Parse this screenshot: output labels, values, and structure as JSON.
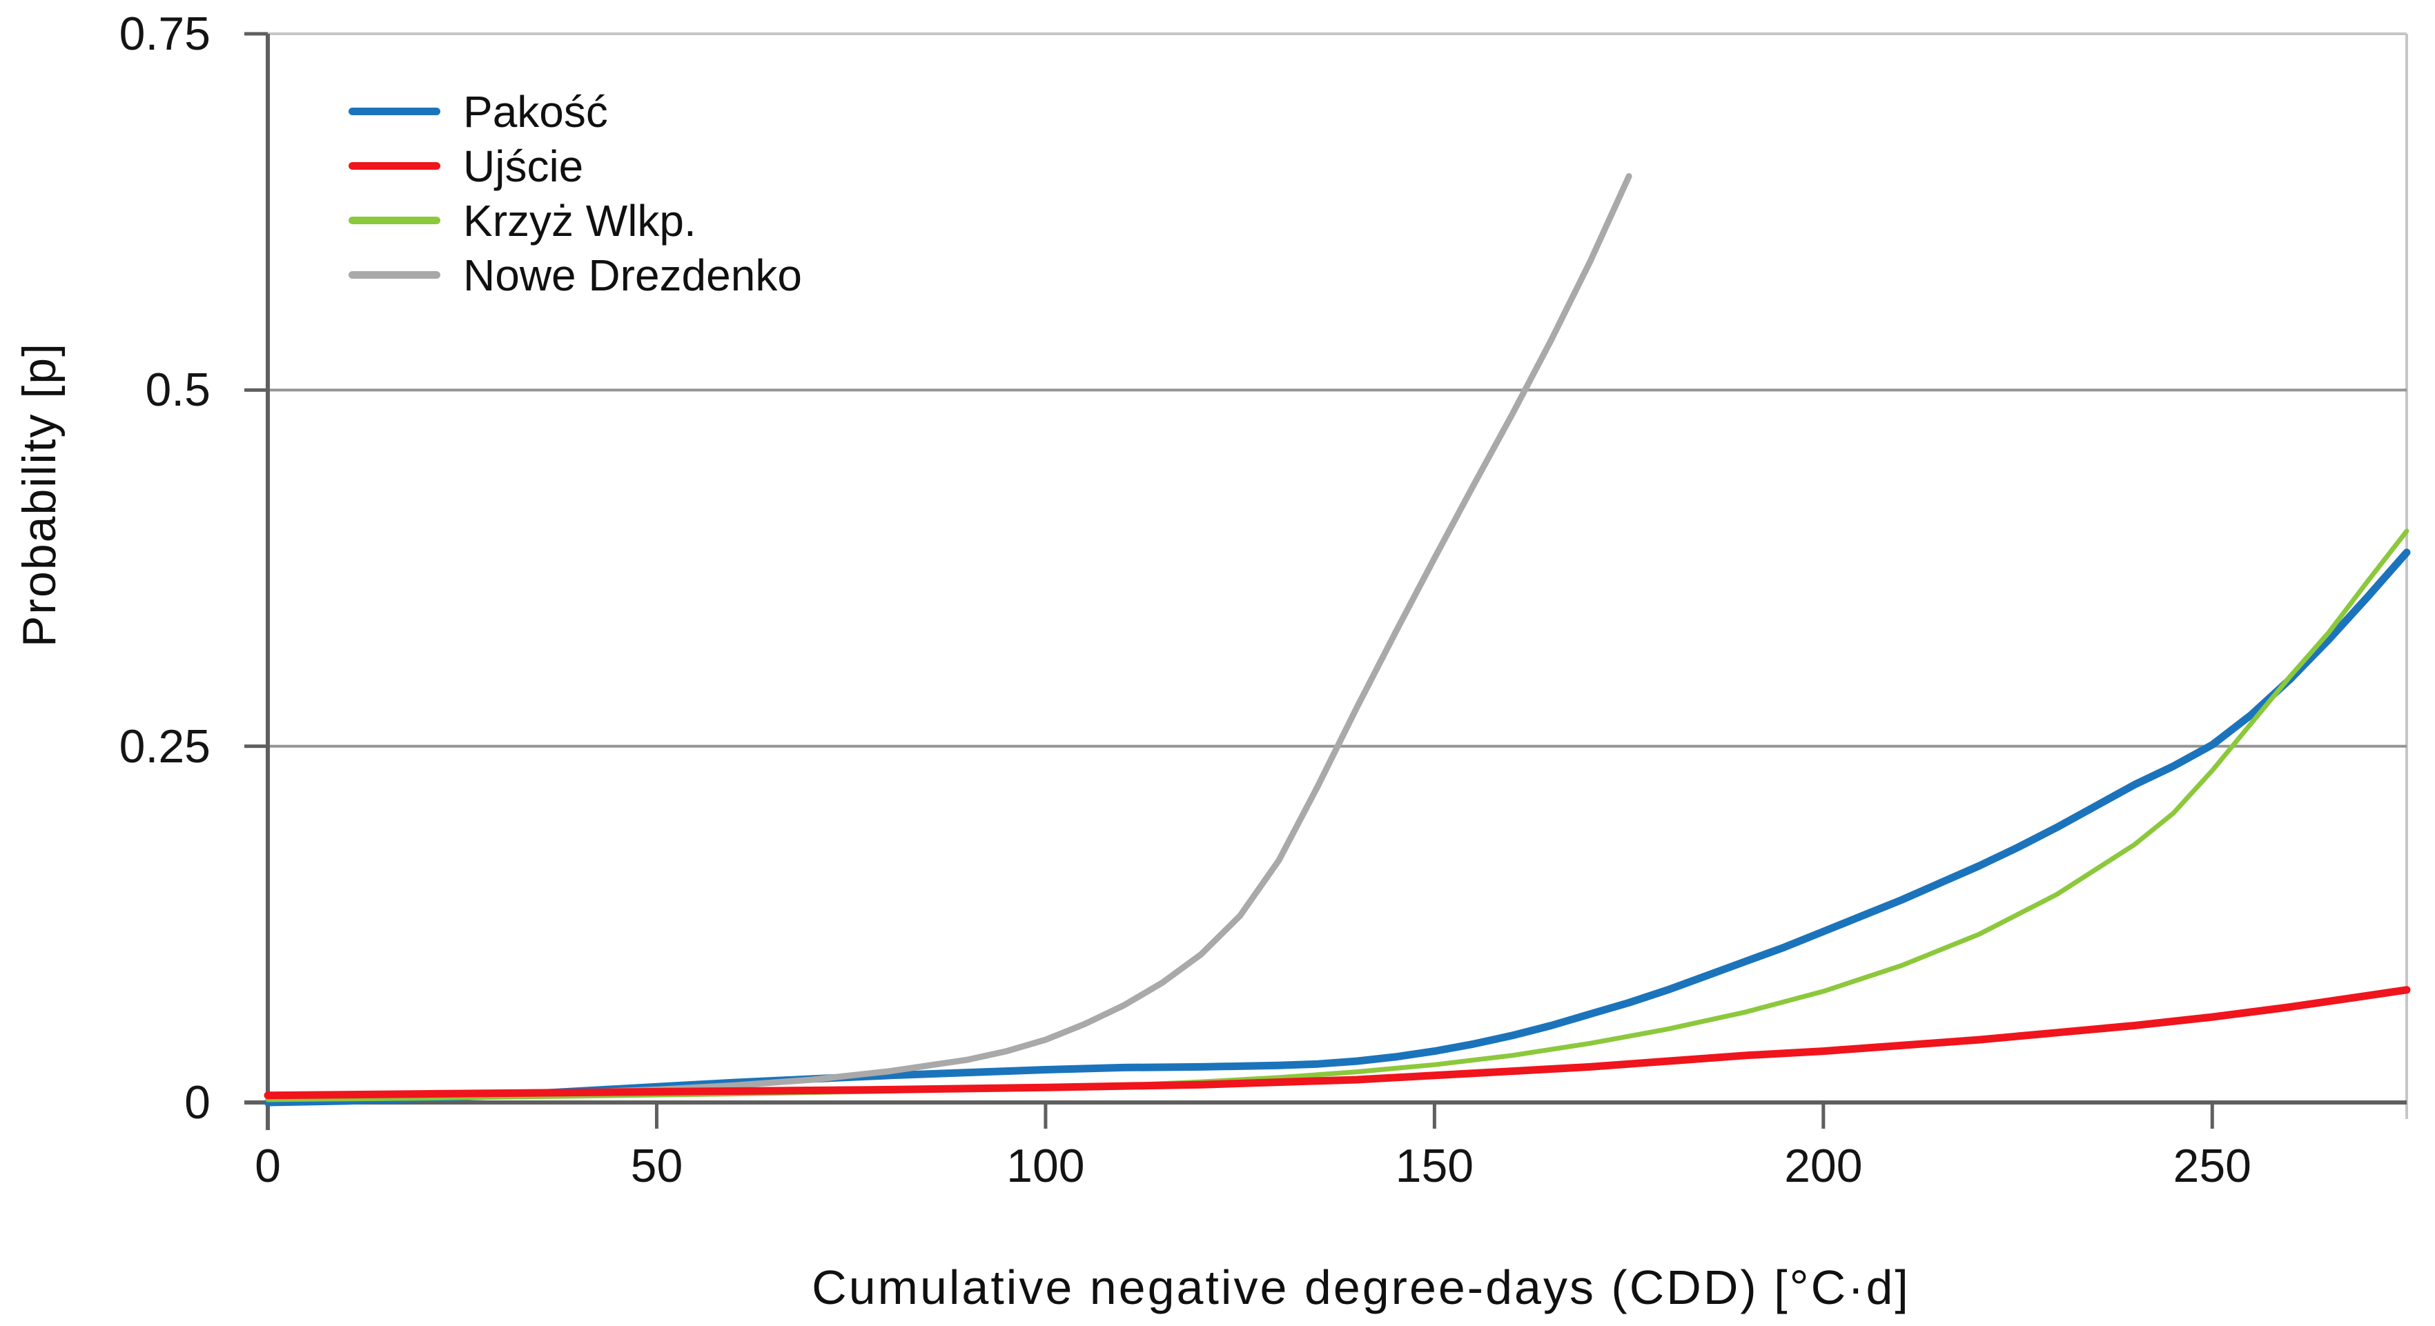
{
  "chart_data": {
    "type": "line",
    "title": "",
    "xlabel": "Cumulative negative degree-days (CDD) [°C·d]",
    "ylabel": "Probability [p]",
    "xlim": [
      0,
      275
    ],
    "ylim": [
      0,
      0.75
    ],
    "xticks": [
      0,
      50,
      100,
      150,
      200,
      250
    ],
    "xtick_labels": [
      "0",
      "50",
      "100",
      "150",
      "200",
      "250"
    ],
    "yticks": [
      0,
      0.25,
      0.5,
      0.75
    ],
    "ytick_labels": [
      "0",
      "0.25",
      "0.5",
      "0.75"
    ],
    "gridlines_y": [
      0.25,
      0.5
    ],
    "grid": "horizontal-only",
    "legend_position": "top-left-inside",
    "axis_color": "#5f5f5f",
    "gridline_color": "#949494",
    "border_color": "#c6c6c6",
    "series": [
      {
        "id": "pakosc",
        "name": "Pakość",
        "color": "#1b74bb",
        "stroke_width": 11,
        "z": 1,
        "points": [
          [
            0,
            0
          ],
          [
            10,
            0.001
          ],
          [
            20,
            0.003
          ],
          [
            30,
            0.005
          ],
          [
            40,
            0.008
          ],
          [
            50,
            0.011
          ],
          [
            60,
            0.014
          ],
          [
            70,
            0.0165
          ],
          [
            80,
            0.019
          ],
          [
            90,
            0.021
          ],
          [
            100,
            0.023
          ],
          [
            110,
            0.0245
          ],
          [
            120,
            0.025
          ],
          [
            130,
            0.026
          ],
          [
            135,
            0.027
          ],
          [
            140,
            0.029
          ],
          [
            145,
            0.032
          ],
          [
            150,
            0.036
          ],
          [
            155,
            0.041
          ],
          [
            160,
            0.047
          ],
          [
            165,
            0.054
          ],
          [
            170,
            0.062
          ],
          [
            175,
            0.07
          ],
          [
            180,
            0.079
          ],
          [
            185,
            0.089
          ],
          [
            190,
            0.099
          ],
          [
            195,
            0.109
          ],
          [
            200,
            0.12
          ],
          [
            205,
            0.131
          ],
          [
            210,
            0.142
          ],
          [
            215,
            0.154
          ],
          [
            220,
            0.166
          ],
          [
            225,
            0.179
          ],
          [
            230,
            0.193
          ],
          [
            235,
            0.208
          ],
          [
            240,
            0.223
          ],
          [
            245,
            0.236
          ],
          [
            250,
            0.251
          ],
          [
            255,
            0.272
          ],
          [
            260,
            0.297
          ],
          [
            265,
            0.325
          ],
          [
            270,
            0.355
          ],
          [
            275,
            0.386
          ]
        ]
      },
      {
        "id": "ujscie",
        "name": "Ujście",
        "color": "#f0141c",
        "stroke_width": 11,
        "z": 4,
        "points": [
          [
            0,
            0.005
          ],
          [
            20,
            0.006
          ],
          [
            40,
            0.007
          ],
          [
            60,
            0.008
          ],
          [
            80,
            0.009
          ],
          [
            100,
            0.0105
          ],
          [
            120,
            0.0125
          ],
          [
            140,
            0.016
          ],
          [
            150,
            0.019
          ],
          [
            160,
            0.022
          ],
          [
            170,
            0.025
          ],
          [
            180,
            0.029
          ],
          [
            190,
            0.033
          ],
          [
            200,
            0.036
          ],
          [
            210,
            0.04
          ],
          [
            220,
            0.044
          ],
          [
            230,
            0.049
          ],
          [
            240,
            0.054
          ],
          [
            250,
            0.06
          ],
          [
            260,
            0.067
          ],
          [
            270,
            0.075
          ],
          [
            275,
            0.079
          ]
        ]
      },
      {
        "id": "krzyz-wlkp",
        "name": "Krzyż Wlkp.",
        "color": "#8cc83c",
        "stroke_width": 7,
        "z": 3,
        "points": [
          [
            0,
            0.002
          ],
          [
            20,
            0.003
          ],
          [
            40,
            0.0045
          ],
          [
            60,
            0.006
          ],
          [
            80,
            0.008
          ],
          [
            100,
            0.0105
          ],
          [
            110,
            0.012
          ],
          [
            120,
            0.0145
          ],
          [
            130,
            0.0175
          ],
          [
            140,
            0.0215
          ],
          [
            150,
            0.0265
          ],
          [
            160,
            0.033
          ],
          [
            170,
            0.0415
          ],
          [
            180,
            0.0515
          ],
          [
            190,
            0.0635
          ],
          [
            200,
            0.078
          ],
          [
            210,
            0.096
          ],
          [
            220,
            0.118
          ],
          [
            230,
            0.146
          ],
          [
            240,
            0.181
          ],
          [
            245,
            0.203
          ],
          [
            250,
            0.233
          ],
          [
            255,
            0.266
          ],
          [
            260,
            0.299
          ],
          [
            265,
            0.33
          ],
          [
            270,
            0.366
          ],
          [
            275,
            0.401
          ]
        ]
      },
      {
        "id": "nowe-drezdenko",
        "name": "Nowe Drezdenko",
        "color": "#a9a9a9",
        "stroke_width": 9,
        "z": 2,
        "points": [
          [
            0,
            0.005
          ],
          [
            10,
            0.005
          ],
          [
            20,
            0.005
          ],
          [
            30,
            0.006
          ],
          [
            40,
            0.007
          ],
          [
            50,
            0.009
          ],
          [
            60,
            0.012
          ],
          [
            70,
            0.016
          ],
          [
            80,
            0.022
          ],
          [
            90,
            0.03
          ],
          [
            95,
            0.036
          ],
          [
            100,
            0.044
          ],
          [
            105,
            0.055
          ],
          [
            110,
            0.068
          ],
          [
            115,
            0.084
          ],
          [
            120,
            0.104
          ],
          [
            125,
            0.131
          ],
          [
            130,
            0.17
          ],
          [
            135,
            0.222
          ],
          [
            140,
            0.277
          ],
          [
            145,
            0.33
          ],
          [
            150,
            0.382
          ],
          [
            155,
            0.433
          ],
          [
            160,
            0.483
          ],
          [
            165,
            0.535
          ],
          [
            170,
            0.59
          ],
          [
            175,
            0.65
          ]
        ]
      }
    ]
  }
}
